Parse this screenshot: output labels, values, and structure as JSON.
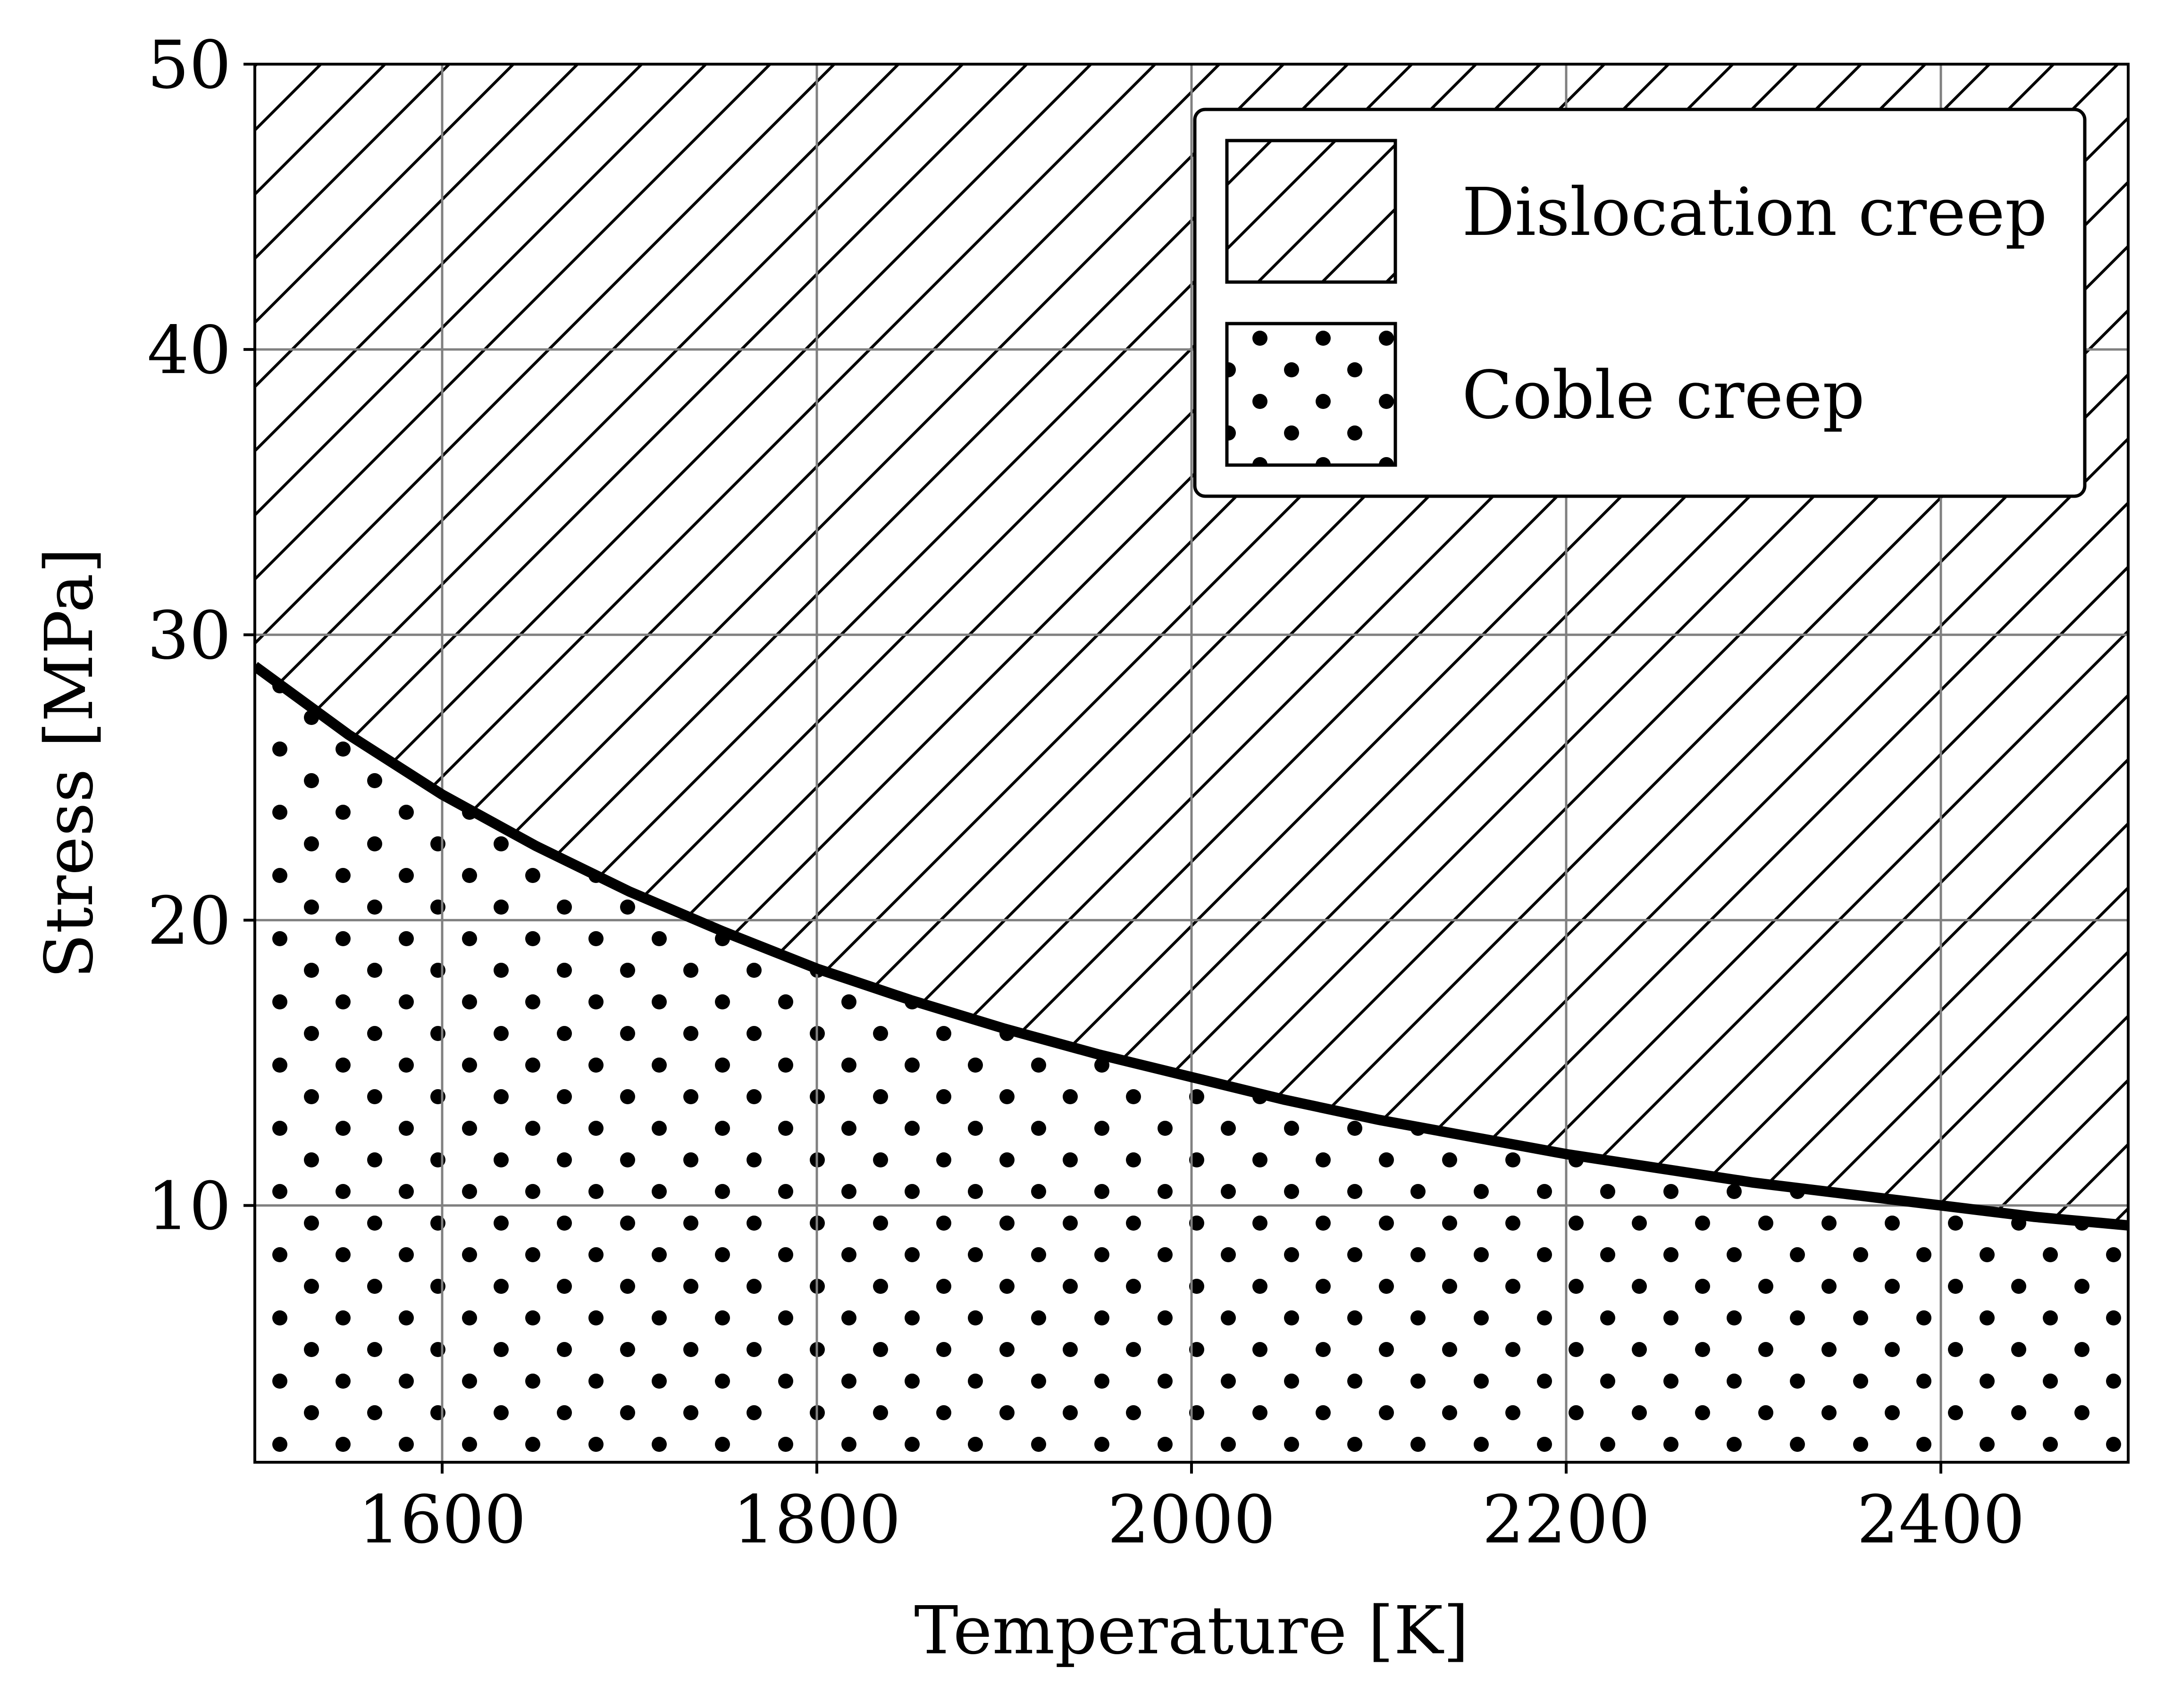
{
  "chart_data": {
    "type": "area",
    "title": "",
    "xlabel": "Temperature [K]",
    "ylabel": "Stress [MPa]",
    "xlim": [
      1500,
      2500
    ],
    "ylim": [
      1,
      50
    ],
    "xticks": [
      1600,
      1800,
      2000,
      2200,
      2400
    ],
    "yticks": [
      10,
      20,
      30,
      40,
      50
    ],
    "grid": true,
    "legend_position": "top-right",
    "boundary": {
      "x": [
        1500,
        1550,
        1600,
        1650,
        1700,
        1750,
        1800,
        1850,
        1900,
        1950,
        2000,
        2050,
        2100,
        2150,
        2200,
        2250,
        2300,
        2350,
        2400,
        2450,
        2500
      ],
      "y": [
        28.9,
        26.5,
        24.4,
        22.6,
        21.0,
        19.6,
        18.3,
        17.2,
        16.2,
        15.3,
        14.5,
        13.7,
        13.0,
        12.4,
        11.8,
        11.3,
        10.8,
        10.4,
        10.0,
        9.6,
        9.3
      ]
    },
    "series": [
      {
        "name": "Dislocation creep",
        "region": "above",
        "pattern": "diagonal-hatch"
      },
      {
        "name": "Coble creep",
        "region": "below",
        "pattern": "dots"
      }
    ],
    "colors": {
      "line": "#000000",
      "grid": "#808080",
      "background": "#ffffff"
    }
  }
}
